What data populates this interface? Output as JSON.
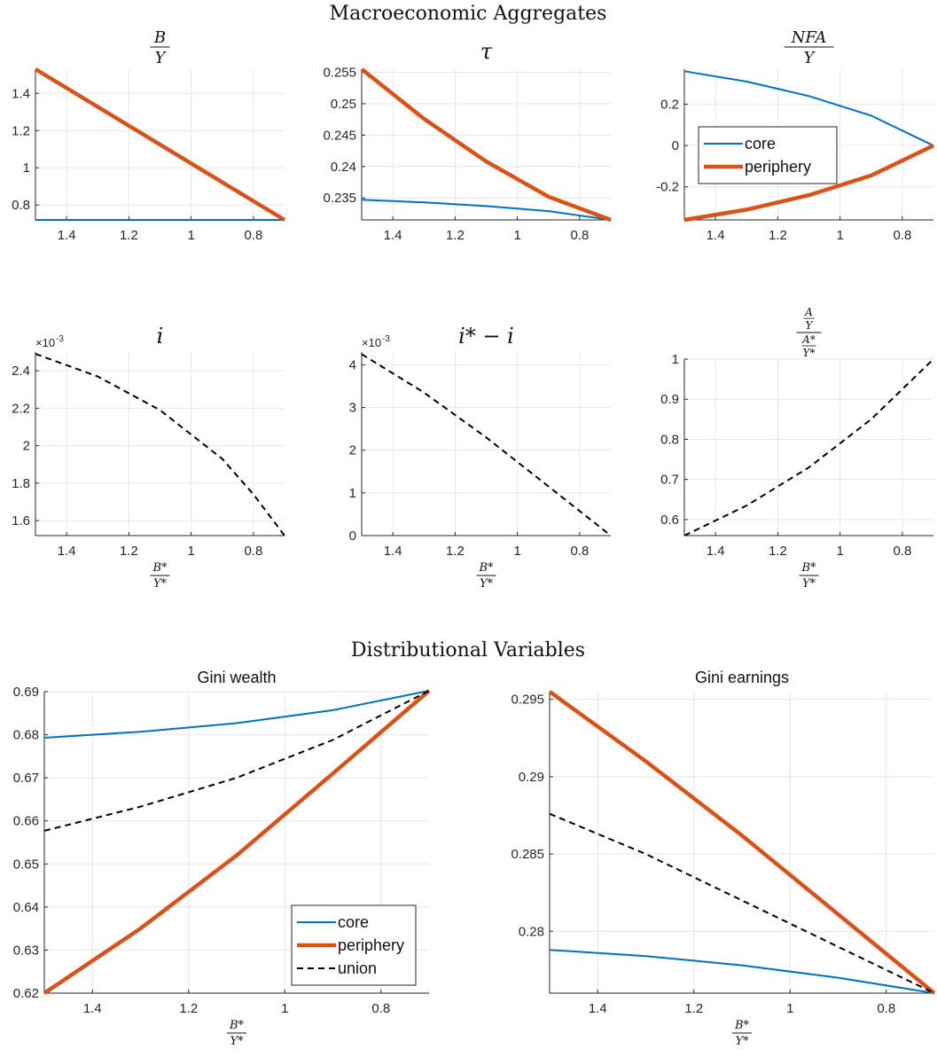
{
  "figure_titles": {
    "macro": "Macroeconomic Aggregates",
    "dist": "Distributional Variables"
  },
  "x_axis": {
    "label_num": "B*",
    "label_den": "Y*",
    "ticks": [
      1.4,
      1.2,
      1,
      0.8
    ],
    "xlim": [
      1.5,
      0.7
    ],
    "reversed": true
  },
  "colors": {
    "core": "#0072BD",
    "periphery": "#D95319",
    "union": "#000000"
  },
  "chart_data": [
    {
      "id": "by",
      "type": "line",
      "title": "B/Y",
      "x": [
        1.5,
        0.7
      ],
      "ylim": [
        0.72,
        1.53
      ],
      "yticks": [
        0.8,
        1,
        1.2,
        1.4
      ],
      "ytick_labels": [
        "0.8",
        "1",
        "1.2",
        "1.4"
      ],
      "show_xlabel": false,
      "series": [
        {
          "name": "core",
          "y": [
            0.72,
            0.72
          ]
        },
        {
          "name": "periphery",
          "y": [
            1.53,
            0.72
          ]
        }
      ]
    },
    {
      "id": "tau",
      "type": "line",
      "title": "τ",
      "x": [
        1.5,
        1.3,
        1.1,
        0.9,
        0.7
      ],
      "ylim": [
        0.2315,
        0.2555
      ],
      "yticks": [
        0.235,
        0.24,
        0.245,
        0.25,
        0.255
      ],
      "ytick_labels": [
        "0.235",
        "0.24",
        "0.245",
        "0.25",
        "0.255"
      ],
      "show_xlabel": false,
      "series": [
        {
          "name": "core",
          "y": [
            0.2347,
            0.2343,
            0.2337,
            0.2329,
            0.2315
          ]
        },
        {
          "name": "periphery",
          "y": [
            0.2555,
            0.2476,
            0.2408,
            0.2352,
            0.2315
          ]
        }
      ]
    },
    {
      "id": "nfa",
      "type": "line",
      "title": "NFA/Y",
      "x": [
        1.5,
        1.3,
        1.1,
        0.9,
        0.7
      ],
      "ylim": [
        -0.36,
        0.37
      ],
      "yticks": [
        -0.2,
        0,
        0.2
      ],
      "ytick_labels": [
        "-0.2",
        "0",
        "0.2"
      ],
      "show_xlabel": false,
      "legend": {
        "entries": [
          "core",
          "periphery"
        ],
        "location": "west"
      },
      "series": [
        {
          "name": "core",
          "y": [
            0.36,
            0.31,
            0.24,
            0.145,
            0.0
          ]
        },
        {
          "name": "periphery",
          "y": [
            -0.36,
            -0.31,
            -0.24,
            -0.145,
            0.0
          ]
        }
      ]
    },
    {
      "id": "i",
      "type": "line",
      "title": "i",
      "x": [
        1.5,
        1.3,
        1.1,
        0.9,
        0.8,
        0.7
      ],
      "ylim": [
        1.52,
        2.5
      ],
      "yticks": [
        1.6,
        1.8,
        2,
        2.2,
        2.4
      ],
      "ytick_labels": [
        "1.6",
        "1.8",
        "2",
        "2.2",
        "2.4"
      ],
      "exponent": "×10",
      "exponent_power": "-3",
      "show_xlabel": true,
      "series": [
        {
          "name": "union",
          "y": [
            2.49,
            2.37,
            2.19,
            1.93,
            1.74,
            1.52
          ]
        }
      ]
    },
    {
      "id": "spread",
      "type": "line",
      "title": "i* − i",
      "x": [
        1.5,
        1.3,
        1.1,
        0.9,
        0.7
      ],
      "ylim": [
        0,
        4.3
      ],
      "yticks": [
        0,
        1,
        2,
        3,
        4
      ],
      "ytick_labels": [
        "0",
        "1",
        "2",
        "3",
        "4"
      ],
      "exponent": "×10",
      "exponent_power": "-3",
      "show_xlabel": true,
      "series": [
        {
          "name": "union",
          "y": [
            4.25,
            3.35,
            2.3,
            1.15,
            0.0
          ]
        }
      ]
    },
    {
      "id": "aratio",
      "type": "line",
      "title": "(A/Y)/(A*/Y*)",
      "x": [
        1.5,
        1.3,
        1.1,
        0.9,
        0.7
      ],
      "ylim": [
        0.56,
        1.0
      ],
      "yticks": [
        0.6,
        0.7,
        0.8,
        0.9,
        1
      ],
      "ytick_labels": [
        "0.6",
        "0.7",
        "0.8",
        "0.9",
        "1"
      ],
      "show_xlabel": true,
      "series": [
        {
          "name": "union",
          "y": [
            0.56,
            0.635,
            0.73,
            0.85,
            1.0
          ]
        }
      ]
    },
    {
      "id": "gini_wealth",
      "type": "line",
      "title": "Gini wealth",
      "x": [
        1.5,
        1.3,
        1.1,
        0.9,
        0.7
      ],
      "ylim": [
        0.62,
        0.69
      ],
      "yticks": [
        0.62,
        0.63,
        0.64,
        0.65,
        0.66,
        0.67,
        0.68,
        0.69
      ],
      "ytick_labels": [
        "0.62",
        "0.63",
        "0.64",
        "0.65",
        "0.66",
        "0.67",
        "0.68",
        "0.69"
      ],
      "show_xlabel": true,
      "legend": {
        "entries": [
          "core",
          "periphery",
          "union"
        ],
        "location": "southeast"
      },
      "series": [
        {
          "name": "core",
          "y": [
            0.6793,
            0.6807,
            0.6827,
            0.6857,
            0.6902
          ]
        },
        {
          "name": "periphery",
          "y": [
            0.62,
            0.635,
            0.652,
            0.671,
            0.6902
          ]
        },
        {
          "name": "union",
          "y": [
            0.6577,
            0.6633,
            0.67,
            0.6788,
            0.6902
          ]
        }
      ]
    },
    {
      "id": "gini_earnings",
      "type": "line",
      "title": "Gini earnings",
      "x": [
        1.5,
        1.3,
        1.1,
        0.9,
        0.7
      ],
      "ylim": [
        0.276,
        0.2955
      ],
      "yticks": [
        0.28,
        0.285,
        0.29,
        0.295
      ],
      "ytick_labels": [
        "0.28",
        "0.285",
        "0.29",
        "0.295"
      ],
      "show_xlabel": true,
      "series": [
        {
          "name": "core",
          "y": [
            0.2788,
            0.2784,
            0.2778,
            0.277,
            0.276
          ]
        },
        {
          "name": "periphery",
          "y": [
            0.2955,
            0.291,
            0.2862,
            0.2811,
            0.276
          ]
        },
        {
          "name": "union",
          "y": [
            0.2876,
            0.285,
            0.282,
            0.279,
            0.276
          ]
        }
      ]
    }
  ]
}
